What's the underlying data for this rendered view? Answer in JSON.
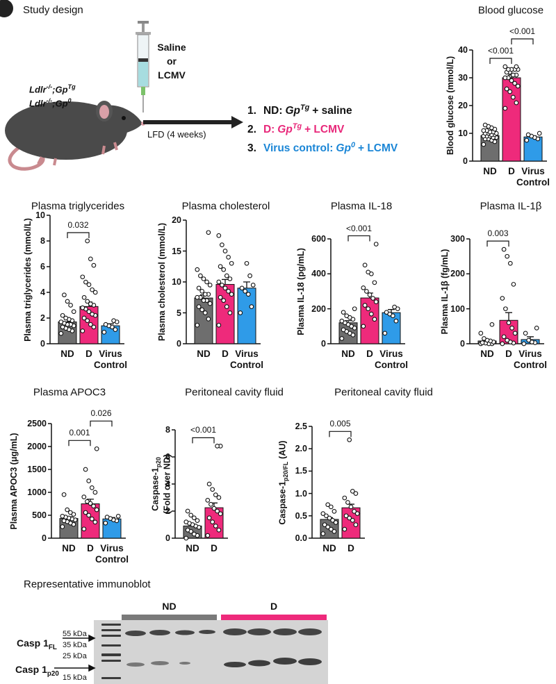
{
  "study_design": {
    "title": "Study design",
    "genotypes": [
      {
        "text": "Ldlr",
        "sup": "-/-",
        "text2": ";Gp",
        "sup2": "Tg"
      },
      {
        "text": "Ldlr",
        "sup": "-/-",
        "text2": ";Gp",
        "sup2": "0"
      }
    ],
    "injection": [
      "Saline",
      "or",
      "LCMV"
    ],
    "diet": "LFD (4 weeks)",
    "groups": [
      {
        "number": "1.",
        "label": "ND:",
        "gene": "Gp",
        "sup": "Tg",
        "treatment": "+ saline",
        "color": "#111111"
      },
      {
        "number": "2.",
        "label": "D:",
        "gene": "Gp",
        "sup": "Tg",
        "treatment": "+ LCMV",
        "color": "#e8287a"
      },
      {
        "number": "3.",
        "label": "Virus control:",
        "gene": "Gp",
        "sup": "0",
        "treatment": "+ LCMV",
        "color": "#1b86d6"
      }
    ]
  },
  "chart_data": [
    {
      "type": "bar",
      "title": "Blood glucose",
      "ylabel": "Blood glucose (mmol/L)",
      "categories": [
        "ND",
        "D",
        "Virus Control"
      ],
      "colors": [
        "#6e6e6e",
        "#ee2a7b",
        "#2f9be8"
      ],
      "values": [
        9.2,
        30,
        8.7
      ],
      "errors": [
        0.4,
        1,
        0.4
      ],
      "points": [
        [
          6,
          7,
          7.5,
          8,
          8,
          8.5,
          8.5,
          9,
          9,
          9,
          9.5,
          9.5,
          10,
          10,
          10,
          10.5,
          10.5,
          11,
          11,
          11.5,
          12,
          12.5,
          13
        ],
        [
          19,
          21,
          23,
          25,
          26,
          27,
          28,
          29,
          30,
          30,
          31,
          31,
          32,
          32,
          33,
          33,
          33,
          33,
          34,
          34
        ],
        [
          7.5,
          8,
          8.5,
          9,
          9.5,
          10
        ]
      ],
      "ylim": [
        0,
        40
      ],
      "yticks": [
        0,
        10,
        20,
        30,
        40
      ],
      "comparisons": [
        {
          "label": "<0.001",
          "groups": [
            "ND",
            "D"
          ]
        },
        {
          "label": "<0.001",
          "groups": [
            "D",
            "Virus Control"
          ]
        }
      ]
    },
    {
      "type": "bar",
      "title": "Plasma triglycerides",
      "ylabel": "Plasma triglycerides (mmol/L)",
      "categories": [
        "ND",
        "D",
        "Virus Control"
      ],
      "colors": [
        "#6e6e6e",
        "#ee2a7b",
        "#2f9be8"
      ],
      "values": [
        1.7,
        2.9,
        1.4
      ],
      "errors": [
        0.2,
        0.35,
        0.15
      ],
      "points": [
        [
          0.8,
          1.0,
          1.1,
          1.2,
          1.3,
          1.4,
          1.5,
          1.5,
          1.6,
          1.7,
          1.8,
          1.9,
          2.0,
          2.2,
          2.5,
          3.0,
          3.3,
          3.8
        ],
        [
          1.0,
          1.3,
          1.5,
          1.8,
          2.0,
          2.2,
          2.3,
          2.5,
          2.7,
          2.8,
          3.0,
          3.1,
          3.3,
          3.6,
          4.0,
          4.2,
          4.6,
          4.8,
          5.2,
          6.1,
          6.6,
          8.0
        ],
        [
          0.9,
          1.1,
          1.3,
          1.4,
          1.5,
          1.7,
          1.8
        ]
      ],
      "ylim": [
        0,
        10
      ],
      "yticks": [
        0,
        2,
        4,
        6,
        8,
        10
      ],
      "comparisons": [
        {
          "label": "0.032",
          "groups": [
            "ND",
            "D"
          ]
        }
      ]
    },
    {
      "type": "bar",
      "title": "Plasma cholesterol",
      "ylabel": "Plasma cholesterol (mmol/L)",
      "categories": [
        "ND",
        "D",
        "Virus Control"
      ],
      "colors": [
        "#6e6e6e",
        "#ee2a7b",
        "#2f9be8"
      ],
      "values": [
        7.4,
        9.6,
        9.0
      ],
      "errors": [
        0.5,
        0.8,
        1
      ],
      "points": [
        [
          3,
          4,
          5,
          5.5,
          6,
          6.5,
          7,
          7,
          7.5,
          7.5,
          8,
          8,
          8.5,
          9,
          9.5,
          10,
          10.5,
          11,
          12,
          18
        ],
        [
          3,
          5,
          6,
          7,
          7.5,
          8,
          8.5,
          9,
          9.5,
          10,
          10.5,
          11,
          12,
          12.5,
          13,
          14,
          15,
          16,
          17.5
        ],
        [
          5,
          6,
          8,
          8.5,
          9,
          9.5,
          11,
          13
        ]
      ],
      "ylim": [
        0,
        20
      ],
      "yticks": [
        0,
        5,
        10,
        15,
        20
      ],
      "comparisons": []
    },
    {
      "type": "bar",
      "title": "Plasma IL-18",
      "ylabel": "Plasma IL-18 (pg/mL)",
      "categories": [
        "ND",
        "D",
        "Virus Control"
      ],
      "colors": [
        "#6e6e6e",
        "#ee2a7b",
        "#2f9be8"
      ],
      "values": [
        120,
        262,
        178
      ],
      "errors": [
        12,
        28,
        18
      ],
      "points": [
        [
          30,
          50,
          60,
          70,
          80,
          90,
          100,
          110,
          120,
          130,
          140,
          150,
          160,
          180,
          200
        ],
        [
          100,
          140,
          170,
          200,
          220,
          240,
          260,
          280,
          300,
          320,
          350,
          400,
          410,
          450,
          570
        ],
        [
          60,
          130,
          160,
          170,
          180,
          200,
          210
        ]
      ],
      "ylim": [
        0,
        600
      ],
      "yticks": [
        0,
        200,
        400,
        600
      ],
      "comparisons": [
        {
          "label": "<0.001",
          "groups": [
            "ND",
            "D"
          ]
        }
      ]
    },
    {
      "type": "bar",
      "title": "Plasma IL-1β",
      "ylabel": "Plasma IL-1β (fg/mL)",
      "categories": [
        "ND",
        "D",
        "Virus Control"
      ],
      "colors": [
        "#6e6e6e",
        "#ee2a7b",
        "#2f9be8"
      ],
      "values": [
        8,
        67,
        12
      ],
      "errors": [
        4,
        22,
        8
      ],
      "points": [
        [
          0,
          0,
          0,
          2,
          3,
          5,
          8,
          10,
          15,
          30,
          55
        ],
        [
          0,
          2,
          5,
          10,
          20,
          30,
          45,
          60,
          100,
          130,
          170,
          230,
          250,
          270
        ],
        [
          0,
          3,
          5,
          10,
          30,
          45
        ]
      ],
      "ylim": [
        0,
        300
      ],
      "yticks": [
        0,
        100,
        200,
        300
      ],
      "comparisons": [
        {
          "label": "0.003",
          "groups": [
            "ND",
            "D"
          ]
        }
      ]
    },
    {
      "type": "bar",
      "title": "Plasma APOC3",
      "ylabel": "Plasma APOC3 (μg/mL)",
      "categories": [
        "ND",
        "D",
        "Virus Control"
      ],
      "colors": [
        "#6e6e6e",
        "#ee2a7b",
        "#2f9be8"
      ],
      "values": [
        430,
        750,
        420
      ],
      "errors": [
        35,
        100,
        30
      ],
      "points": [
        [
          250,
          300,
          330,
          360,
          380,
          400,
          420,
          440,
          460,
          480,
          520,
          560,
          620,
          950
        ],
        [
          200,
          350,
          420,
          500,
          560,
          620,
          700,
          760,
          800,
          900,
          1000,
          1100,
          1250,
          1500,
          1950
        ],
        [
          330,
          380,
          400,
          430,
          460,
          480
        ]
      ],
      "ylim": [
        0,
        2500
      ],
      "yticks": [
        0,
        500,
        1000,
        1500,
        2000,
        2500
      ],
      "comparisons": [
        {
          "label": "0.001",
          "groups": [
            "ND",
            "D"
          ]
        },
        {
          "label": "0.026",
          "groups": [
            "D",
            "Virus Control"
          ]
        }
      ]
    },
    {
      "type": "bar",
      "title": "Peritoneal cavity fluid",
      "ylabel": "Caspase-1",
      "ylabel_sub": "p20",
      "ylabel_rest": "(Fold over ND)",
      "ylabel_wrap": true,
      "categories": [
        "ND",
        "D"
      ],
      "colors": [
        "#6e6e6e",
        "#ee2a7b"
      ],
      "values": [
        0.9,
        2.25
      ],
      "errors": [
        0.13,
        0.35
      ],
      "points": [
        [
          0,
          0.2,
          0.3,
          0.5,
          0.6,
          0.8,
          0.9,
          1.0,
          1.1,
          1.2,
          1.3,
          1.5,
          1.7,
          2.0
        ],
        [
          0.2,
          0.6,
          0.9,
          1.2,
          1.5,
          1.8,
          2.0,
          2.2,
          2.5,
          2.8,
          3.0,
          3.2,
          3.6,
          4.0,
          6.8,
          6.8
        ]
      ],
      "ylim": [
        0,
        8
      ],
      "yticks": [
        0,
        2,
        4,
        6,
        8
      ],
      "comparisons": [
        {
          "label": "<0.001",
          "groups": [
            "ND",
            "D"
          ]
        }
      ]
    },
    {
      "type": "bar",
      "title": "Peritoneal cavity fluid",
      "ylabel": "Caspase-1",
      "ylabel_sub": "p20/FL",
      "ylabel_rest": "(AU)",
      "ylabel_wrap": false,
      "categories": [
        "ND",
        "D"
      ],
      "colors": [
        "#6e6e6e",
        "#ee2a7b"
      ],
      "values": [
        0.42,
        0.68
      ],
      "errors": [
        0.04,
        0.08
      ],
      "points": [
        [
          0.1,
          0.15,
          0.2,
          0.25,
          0.3,
          0.35,
          0.4,
          0.45,
          0.5,
          0.55,
          0.6,
          0.7,
          0.75
        ],
        [
          0.2,
          0.3,
          0.4,
          0.45,
          0.5,
          0.55,
          0.6,
          0.7,
          0.8,
          0.9,
          1.0,
          1.05,
          2.2
        ]
      ],
      "ylim": [
        0,
        2.5
      ],
      "yticks": [
        {
          "value": 0,
          "label": "0.0"
        },
        0.5,
        {
          "value": 1,
          "label": "1.0"
        },
        1.5,
        {
          "value": 2,
          "label": "2.0"
        },
        2.5
      ],
      "comparisons": [
        {
          "label": "0.005",
          "groups": [
            "ND",
            "D"
          ]
        }
      ]
    }
  ],
  "immunoblot": {
    "title": "Representative immunoblot",
    "groups": [
      {
        "name": "ND",
        "color": "#7a7a7a"
      },
      {
        "name": "D",
        "color": "#ee2a7b"
      }
    ],
    "markers": [
      "55 kDa",
      "35 kDa",
      "25 kDa",
      "15 kDa"
    ],
    "bands": [
      {
        "text": "Casp 1",
        "sub": "FL"
      },
      {
        "text": "Casp 1",
        "sub": "p20"
      }
    ]
  }
}
